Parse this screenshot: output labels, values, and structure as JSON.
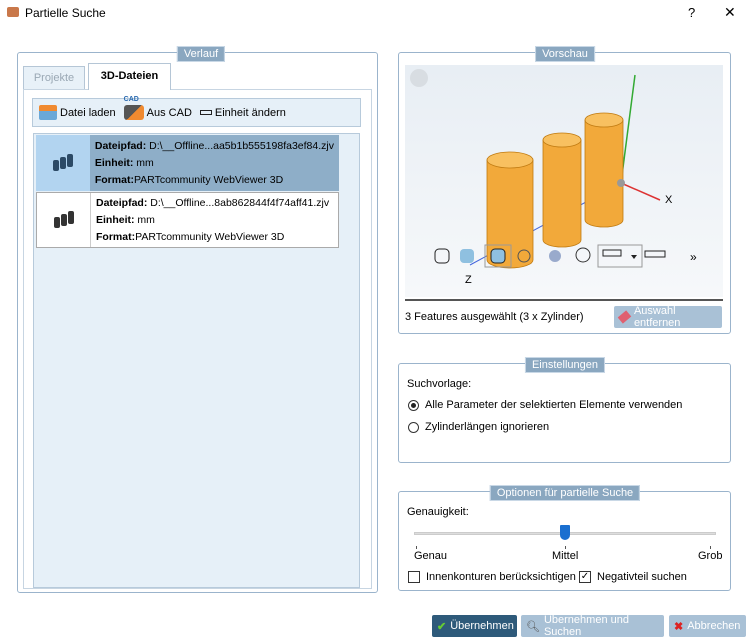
{
  "window": {
    "title": "Partielle Suche",
    "help": "?",
    "close": "✕"
  },
  "verlauf": {
    "legend": "Verlauf",
    "tabs": [
      {
        "label": "Projekte",
        "active": false
      },
      {
        "label": "3D-Dateien",
        "active": true
      }
    ],
    "toolbar": {
      "load": "Datei laden",
      "cad": "Aus CAD",
      "cad_badge": "CAD",
      "unit": "Einheit ändern"
    },
    "files": [
      {
        "path_label": "Dateipfad:",
        "path": "D:\\__Offline...aa5b1b555198fa3ef84.zjv",
        "unit_label": "Einheit:",
        "unit": "mm",
        "format_label": "Format:",
        "format": "PARTcommunity WebViewer 3D",
        "selected": true
      },
      {
        "path_label": "Dateipfad:",
        "path": "D:\\__Offline...8ab862844f4f74aff41.zjv",
        "unit_label": "Einheit:",
        "unit": "mm",
        "format_label": "Format:",
        "format": "PARTcommunity WebViewer 3D",
        "selected": false
      }
    ]
  },
  "vorschau": {
    "legend": "Vorschau",
    "axis_x": "X",
    "axis_z": "Z",
    "more": "»",
    "status": "3 Features ausgewählt (3 x Zylinder)",
    "remove_button": "Auswahl entfernen",
    "cylinder_color": "#f0a830"
  },
  "einstellungen": {
    "legend": "Einstellungen",
    "label": "Suchvorlage:",
    "options": [
      {
        "label": "Alle Parameter der selektierten Elemente verwenden",
        "checked": true
      },
      {
        "label": "Zylinderlängen ignorieren",
        "checked": false
      }
    ]
  },
  "optionen": {
    "legend": "Optionen für partielle Suche",
    "accuracy_label": "Genauigkeit:",
    "ticks": [
      "Genau",
      "Mittel",
      "Grob"
    ],
    "slider_value": "Mittel",
    "checkboxes": [
      {
        "label": "Innenkonturen berücksichtigen",
        "checked": false
      },
      {
        "label": "Negativteil suchen",
        "checked": true
      }
    ]
  },
  "buttons": {
    "ok": "Übernehmen",
    "ok_search": "Übernehmen und Suchen",
    "cancel": "Abbrechen"
  }
}
